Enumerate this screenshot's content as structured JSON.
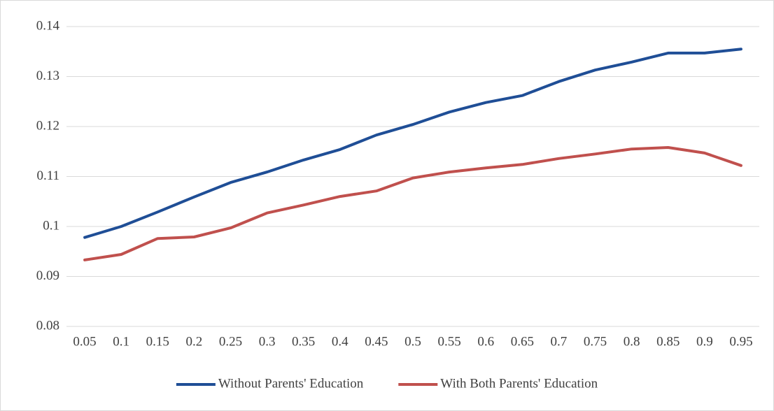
{
  "chart_data": {
    "type": "line",
    "categories": [
      "0.05",
      "0.1",
      "0.15",
      "0.2",
      "0.25",
      "0.3",
      "0.35",
      "0.4",
      "0.45",
      "0.5",
      "0.55",
      "0.6",
      "0.65",
      "0.7",
      "0.75",
      "0.8",
      "0.85",
      "0.9",
      "0.95"
    ],
    "series": [
      {
        "name": "Without Parents' Education",
        "color": "#1f4e96",
        "values": [
          0.0978,
          0.1,
          0.1029,
          0.1059,
          0.1088,
          0.1109,
          0.1133,
          0.1154,
          0.1183,
          0.1204,
          0.1229,
          0.1248,
          0.1262,
          0.129,
          0.1313,
          0.1329,
          0.1347,
          0.1347,
          0.1355
        ]
      },
      {
        "name": "With Both Parents' Education",
        "color": "#c0504d",
        "values": [
          0.0933,
          0.0944,
          0.0976,
          0.0979,
          0.0997,
          0.1027,
          0.1043,
          0.106,
          0.1071,
          0.1097,
          0.1109,
          0.1117,
          0.1124,
          0.1136,
          0.1145,
          0.1155,
          0.1158,
          0.1147,
          0.1122
        ]
      }
    ],
    "ylim": [
      0.08,
      0.14
    ],
    "yticks": [
      0.08,
      0.09,
      0.1,
      0.11,
      0.12,
      0.13,
      0.14
    ],
    "grid": true,
    "legend": "bottom"
  }
}
